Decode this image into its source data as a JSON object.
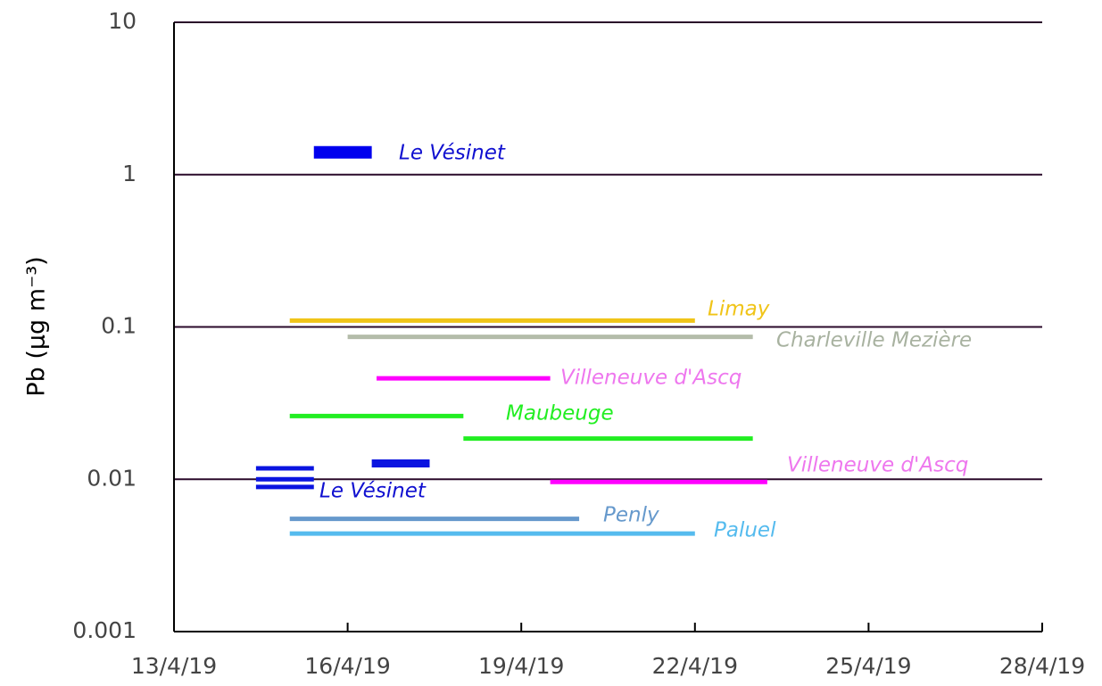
{
  "chart_data": {
    "type": "segment",
    "y_label": "Pb (µg m⁻³)",
    "log_y": true,
    "grid": true,
    "ylim": [
      0.001,
      10
    ],
    "yticks": [
      0.001,
      0.01,
      0.1,
      1,
      10
    ],
    "xlim": [
      "2019-04-13",
      "2019-04-28"
    ],
    "xticks": [
      {
        "value": "2019-04-13",
        "label": "13/4/19"
      },
      {
        "value": "2019-04-16",
        "label": "16/4/19"
      },
      {
        "value": "2019-04-19",
        "label": "19/4/19"
      },
      {
        "value": "2019-04-22",
        "label": "22/4/19"
      },
      {
        "value": "2019-04-25",
        "label": "25/4/19"
      },
      {
        "value": "2019-04-28",
        "label": "28/4/19"
      }
    ],
    "series": [
      {
        "name": "Le Vésinet",
        "color": "#0000ee",
        "label_color": "#1010d0",
        "segments": [
          {
            "start": "2019-04-15T10:00",
            "end": "2019-04-16T10:00",
            "value": 1.4
          }
        ]
      },
      {
        "name": "Limay",
        "color": "#f0c418",
        "label_color": "#f0c418",
        "segments": [
          {
            "start": "2019-04-15",
            "end": "2019-04-22",
            "value": 0.11
          }
        ]
      },
      {
        "name": "Charleville Mezière",
        "color": "#b4bcaa",
        "label_color": "#a8b2a0",
        "segments": [
          {
            "start": "2019-04-16",
            "end": "2019-04-23",
            "value": 0.086
          }
        ]
      },
      {
        "name": "Villeneuve d'Ascq",
        "color": "#ff00ff",
        "label_color": "#ee77ee",
        "segments": [
          {
            "start": "2019-04-16T12:00",
            "end": "2019-04-19T12:00",
            "value": 0.046
          }
        ]
      },
      {
        "name": "Maubeuge",
        "color": "#22ee22",
        "label_color": "#22ee22",
        "segments": [
          {
            "start": "2019-04-15",
            "end": "2019-04-18",
            "value": 0.026
          },
          {
            "start": "2019-04-18",
            "end": "2019-04-23",
            "value": 0.0185
          }
        ]
      },
      {
        "name": "Le Vésinet",
        "color": "#0a14e0",
        "label_color": "#1010d0",
        "segments": [
          {
            "start": "2019-04-14T10:00",
            "end": "2019-04-15T10:00",
            "value": 0.0118
          },
          {
            "start": "2019-04-14T10:00",
            "end": "2019-04-15T10:00",
            "value": 0.01
          },
          {
            "start": "2019-04-14T10:00",
            "end": "2019-04-15T10:00",
            "value": 0.0089
          },
          {
            "start": "2019-04-16T10:00",
            "end": "2019-04-17T10:00",
            "value": 0.0127
          }
        ]
      },
      {
        "name": "Villeneuve d'Ascq",
        "color": "#ff00ff",
        "label_color": "#ee77ee",
        "segments": [
          {
            "start": "2019-04-19T12:00",
            "end": "2019-04-23T06:00",
            "value": 0.0096
          }
        ]
      },
      {
        "name": "Penly",
        "color": "#6699cc",
        "label_color": "#6699cc",
        "segments": [
          {
            "start": "2019-04-15",
            "end": "2019-04-20",
            "value": 0.0055
          }
        ]
      },
      {
        "name": "Paluel",
        "color": "#55bbee",
        "label_color": "#55bbee",
        "segments": [
          {
            "start": "2019-04-15",
            "end": "2019-04-22",
            "value": 0.0044
          }
        ]
      }
    ]
  }
}
